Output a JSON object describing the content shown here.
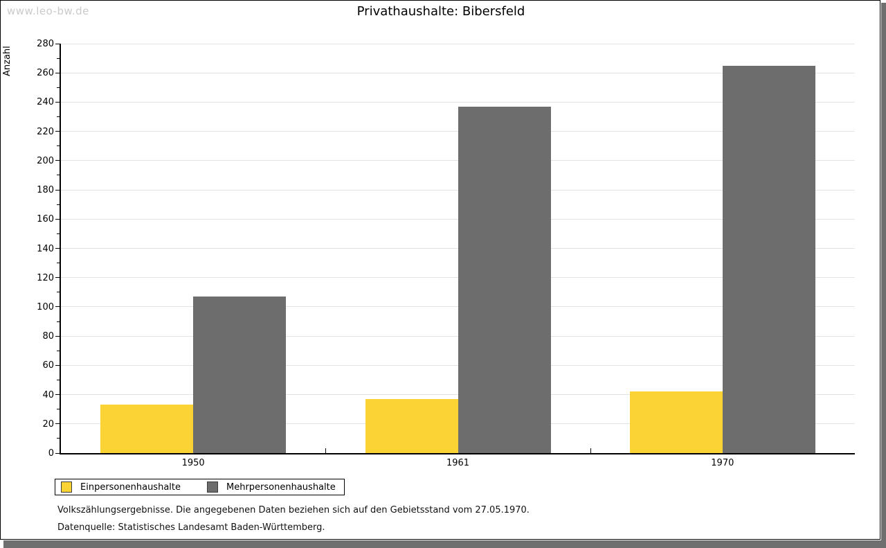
{
  "watermark": "www.leo-bw.de",
  "title": "Privathaushalte: Bibersfeld",
  "chart_data": {
    "type": "bar",
    "title": "Privathaushalte: Bibersfeld",
    "categories": [
      "1950",
      "1961",
      "1970"
    ],
    "series": [
      {
        "name": "Einpersonenhaushalte",
        "color": "#FCD335",
        "values": [
          33,
          37,
          42
        ]
      },
      {
        "name": "Mehrpersonenhaushalte",
        "color": "#6D6D6D",
        "values": [
          107,
          237,
          265
        ]
      }
    ],
    "xlabel": "",
    "ylabel": "Anzahl",
    "ylim": [
      0,
      280
    ],
    "ytick_step": 20,
    "yminor_step": 10,
    "grid": true,
    "legend_position": "bottom-left"
  },
  "footnotes": [
    "Volkszählungsergebnisse. Die angegebenen Daten beziehen sich auf den Gebietsstand vom 27.05.1970.",
    "Datenquelle: Statistisches Landesamt Baden-Württemberg."
  ],
  "colors": {
    "series1": "#FCD335",
    "series2": "#6D6D6D",
    "gridline": "#e3e3e3",
    "axis": "#000000",
    "watermark": "#cbcbcb",
    "frame_shadow": "#6f6f6f",
    "background": "#ffffff"
  }
}
